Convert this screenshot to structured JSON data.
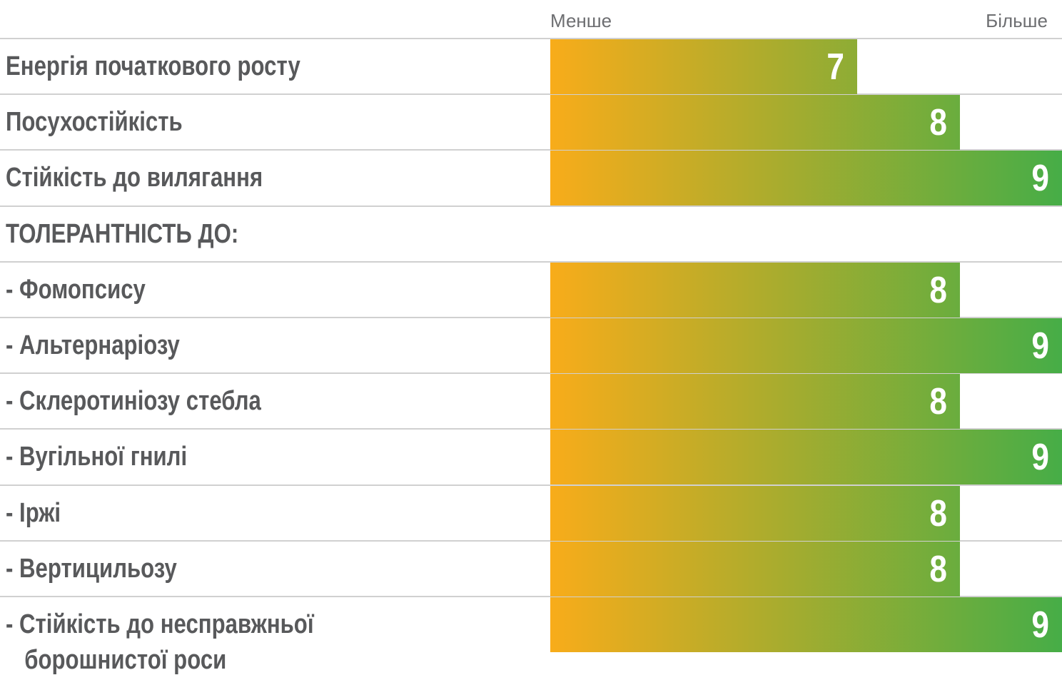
{
  "chart_data": {
    "type": "bar",
    "orientation": "horizontal",
    "scale_labels": [
      "Менше",
      "Більше"
    ],
    "categories": [
      "Енергія початкового росту",
      "Посухостійкість",
      "Стійкість до вилягання",
      "ТОЛЕРАНТНІСТЬ ДО:",
      "- Фомопсису",
      "- Альтернаріозу",
      "- Склеротиніозу стебла",
      "- Вугільної гнилі",
      "- Іржі",
      "- Вертицильозу",
      "- Стійкість до несправжньої борошнистої роси"
    ],
    "values": [
      7,
      8,
      9,
      null,
      8,
      9,
      8,
      9,
      8,
      8,
      9
    ],
    "xlim": [
      4,
      9
    ],
    "colors": [
      "#f8ac1a",
      "#46ad47"
    ]
  }
}
